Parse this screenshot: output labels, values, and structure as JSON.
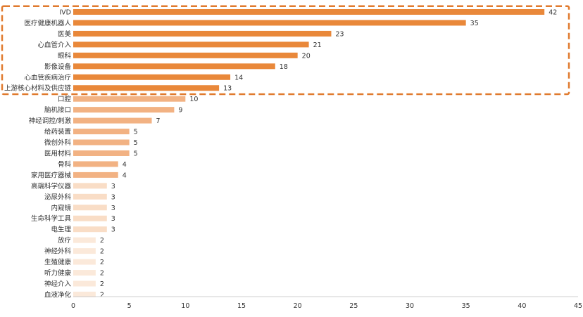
{
  "chart_data": {
    "type": "bar",
    "orientation": "horizontal",
    "title": "",
    "xlabel": "",
    "ylabel": "",
    "xlim": [
      0,
      45
    ],
    "xticks": [
      0,
      5,
      10,
      15,
      20,
      25,
      30,
      35,
      40,
      45
    ],
    "grid": false,
    "highlight": {
      "style": "dashed-box",
      "color": "#E07A2E",
      "first_n": 8
    },
    "categories": [
      "IVD",
      "医疗健康机器人",
      "医美",
      "心血管介入",
      "眼科",
      "影像设备",
      "心血管疾病治疗",
      "上游核心材料及供应链",
      "口腔",
      "脑机接口",
      "神经调控/刺激",
      "给药装置",
      "微创外科",
      "医用材料",
      "骨科",
      "家用医疗器械",
      "高端科学仪器",
      "泌尿外科",
      "内窥镜",
      "生命科学工具",
      "电生理",
      "放疗",
      "神经外科",
      "生殖健康",
      "听力健康",
      "神经介入",
      "血液净化"
    ],
    "values": [
      42,
      35,
      23,
      21,
      20,
      18,
      14,
      13,
      10,
      9,
      7,
      5,
      5,
      5,
      4,
      4,
      3,
      3,
      3,
      3,
      3,
      2,
      2,
      2,
      2,
      2,
      2
    ],
    "colors": [
      "#E9883A",
      "#E9883A",
      "#E9883A",
      "#E9883A",
      "#E9883A",
      "#E9883A",
      "#E9883A",
      "#E9883A",
      "#F2B283",
      "#F2B283",
      "#F2B283",
      "#F2B283",
      "#F2B283",
      "#F2B283",
      "#F2B283",
      "#F2B283",
      "#F9DDC6",
      "#F9DDC6",
      "#F9DDC6",
      "#F9DDC6",
      "#F9DDC6",
      "#FBE9DA",
      "#FBE9DA",
      "#FBE9DA",
      "#FBE9DA",
      "#FBE9DA",
      "#FBE9DA"
    ]
  }
}
